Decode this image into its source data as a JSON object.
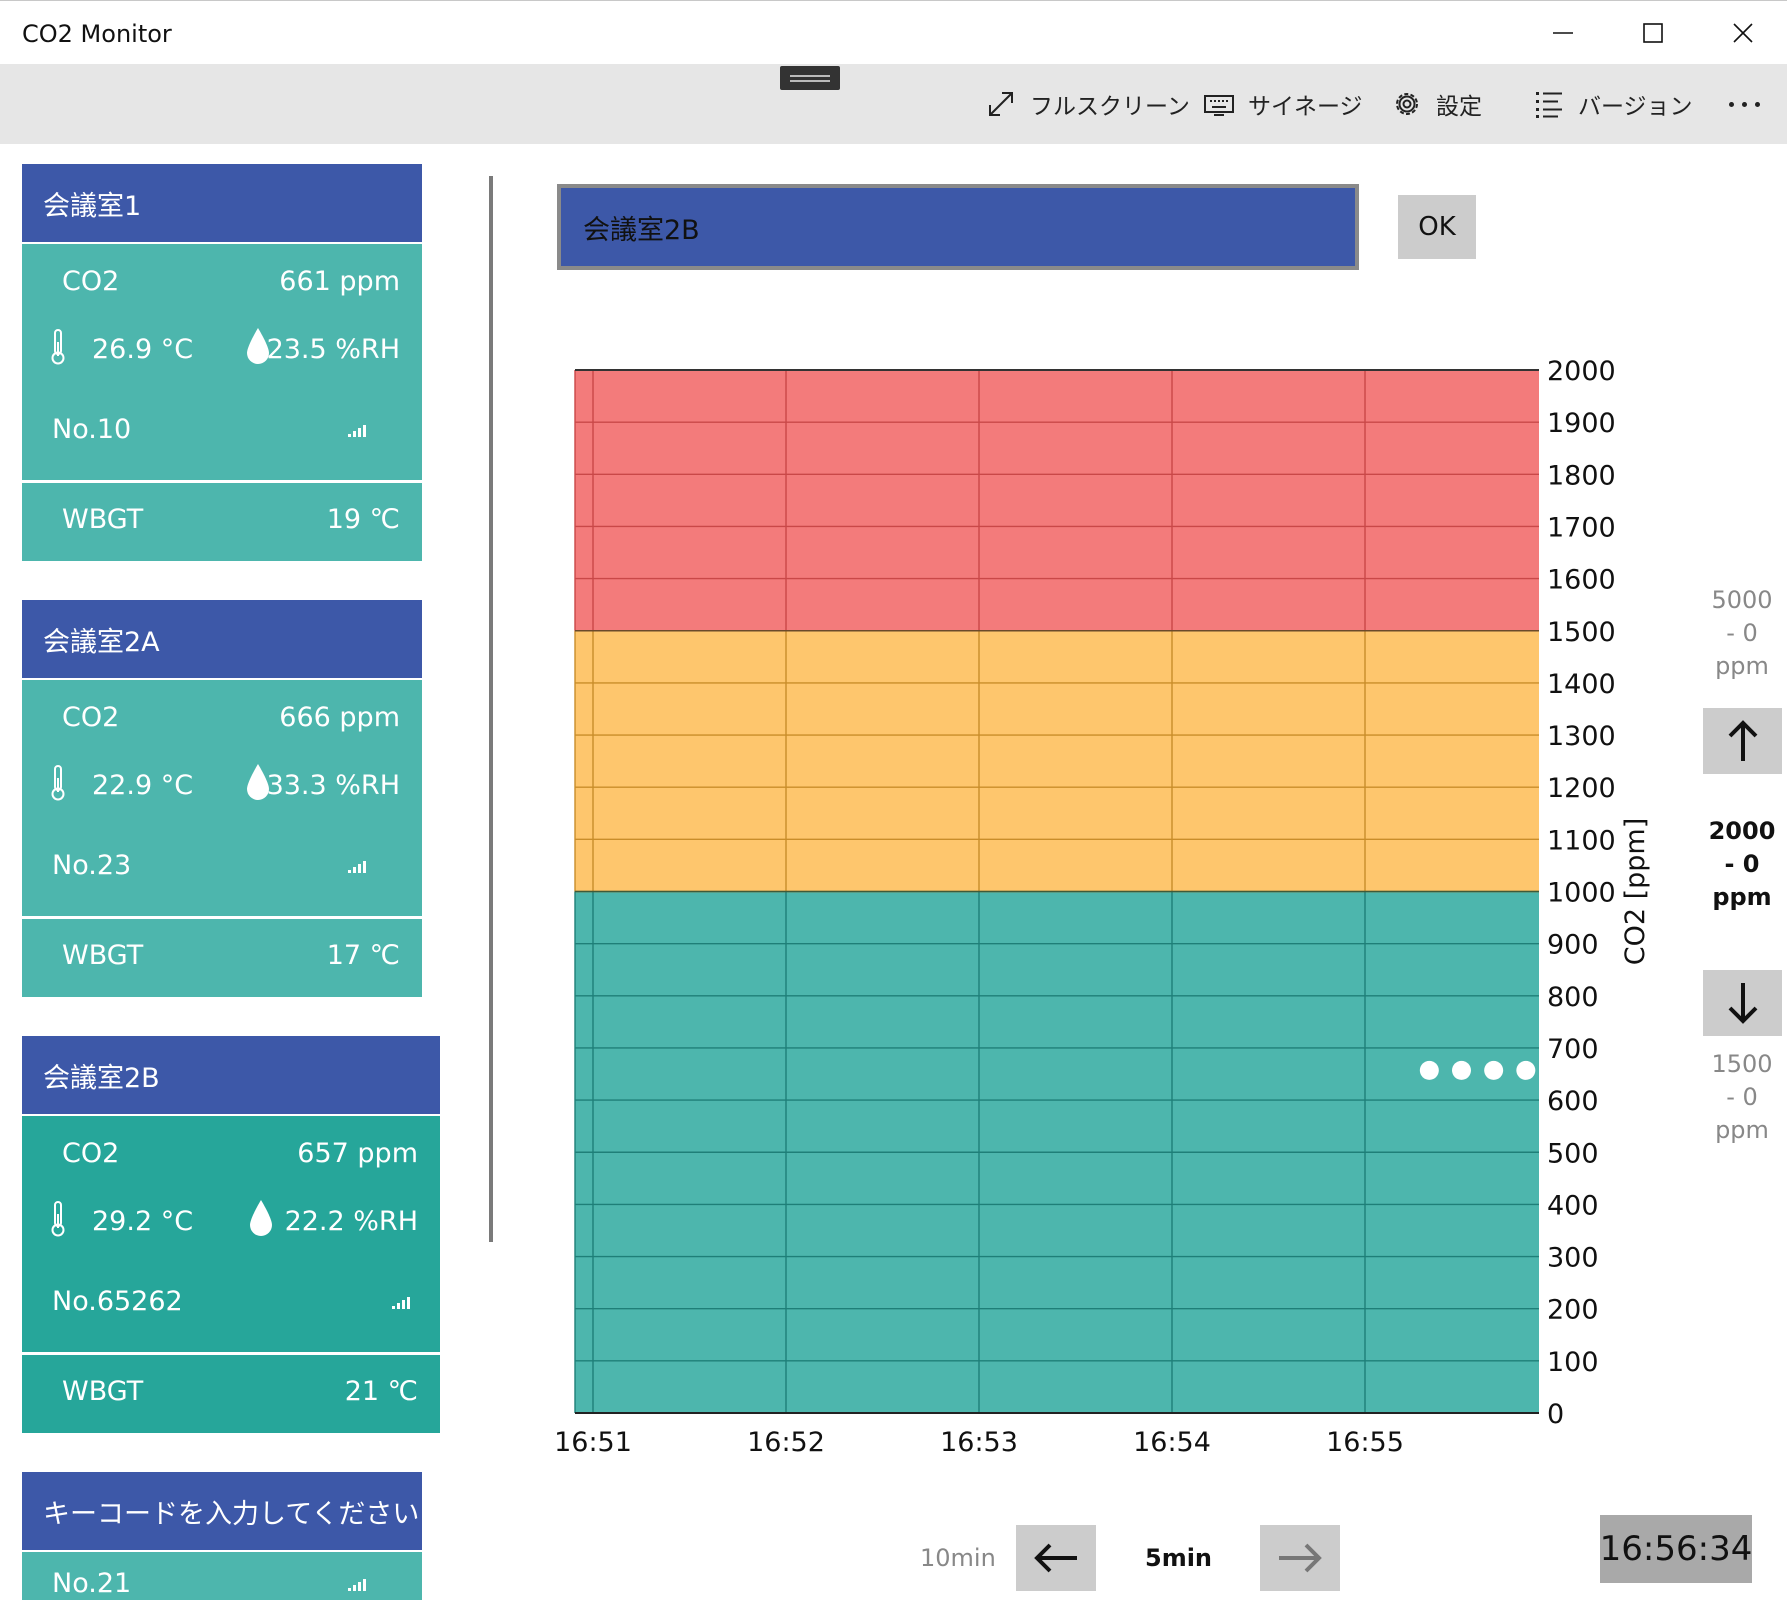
{
  "window": {
    "title": "CO2 Monitor"
  },
  "toolbar": {
    "fullscreen": "フルスクリーン",
    "signage": "サイネージ",
    "settings": "設定",
    "version": "バージョン"
  },
  "rooms": [
    {
      "name": "会議室1",
      "co2_label": "CO2",
      "co2": "661 ppm",
      "temp": "26.9 °C",
      "hum": "23.5 %RH",
      "device": "No.10",
      "wbgt_label": "WBGT",
      "wbgt": "19 ℃"
    },
    {
      "name": "会議室2A",
      "co2_label": "CO2",
      "co2": "666 ppm",
      "temp": "22.9 °C",
      "hum": "33.3 %RH",
      "device": "No.23",
      "wbgt_label": "WBGT",
      "wbgt": "17 ℃"
    },
    {
      "name": "会議室2B",
      "co2_label": "CO2",
      "co2": "657 ppm",
      "temp": "29.2 °C",
      "hum": "22.2 %RH",
      "device": "No.65262",
      "wbgt_label": "WBGT",
      "wbgt": "21 ℃"
    },
    {
      "name": "キーコードを入力してください",
      "device": "No.21"
    }
  ],
  "editor": {
    "room_name": "会議室2B",
    "ok": "OK"
  },
  "chart_data": {
    "type": "scatter",
    "ylabel": "CO2 [ppm]",
    "ylim": [
      0,
      2000
    ],
    "yticks": [
      "0",
      "100",
      "200",
      "300",
      "400",
      "500",
      "600",
      "700",
      "800",
      "900",
      "1000",
      "1100",
      "1200",
      "1300",
      "1400",
      "1500",
      "1600",
      "1700",
      "1800",
      "1900",
      "2000"
    ],
    "xticks": [
      "16:51",
      "16:52",
      "16:53",
      "16:54",
      "16:55"
    ],
    "xlim": [
      "16:51",
      "16:56"
    ],
    "bands": [
      {
        "from": 0,
        "to": 1000,
        "color": "#4db6ad"
      },
      {
        "from": 1000,
        "to": 1500,
        "color": "#fec66d"
      },
      {
        "from": 1500,
        "to": 2000,
        "color": "#f37b7b"
      }
    ],
    "points": [
      {
        "x": "16:55:20",
        "y": 657
      },
      {
        "x": "16:55:30",
        "y": 657
      },
      {
        "x": "16:55:40",
        "y": 657
      },
      {
        "x": "16:55:50",
        "y": 657
      }
    ],
    "point_color": "#ffffff",
    "grid": true
  },
  "ranges": {
    "upper": [
      "5000",
      "- 0",
      "ppm"
    ],
    "current": [
      "2000",
      "- 0",
      "ppm"
    ],
    "lower": [
      "1500",
      "- 0",
      "ppm"
    ]
  },
  "timenav": {
    "prev": "10min",
    "current": "5min"
  },
  "clock": "16:56:34"
}
